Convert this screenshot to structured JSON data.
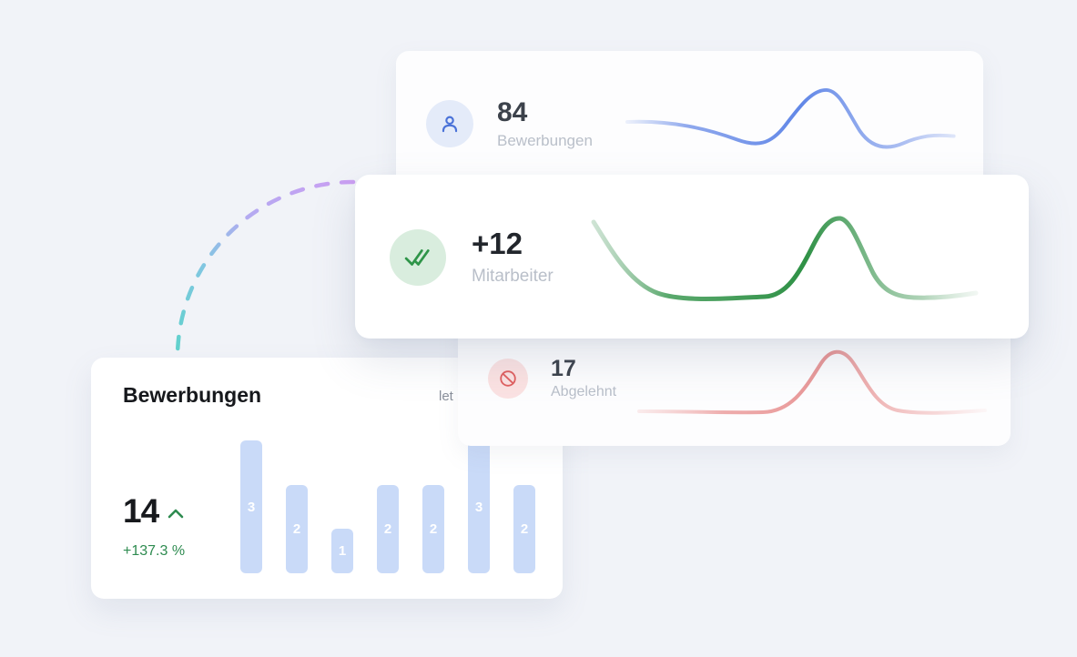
{
  "cards": {
    "applications": {
      "value": "84",
      "label": "Bewerbungen",
      "icon": "person-icon",
      "accent": "#4a72d8",
      "circle_bg": "#e4ebf9"
    },
    "employees": {
      "value": "+12",
      "label": "Mitarbeiter",
      "icon": "double-check-icon",
      "accent": "#2f9549",
      "circle_bg": "#d9edde"
    },
    "rejected": {
      "value": "17",
      "label": "Abgelehnt",
      "icon": "blocked-icon",
      "accent": "#e05f5f",
      "circle_bg": "#fbe2e2"
    }
  },
  "chart_card": {
    "title": "Bewerbungen",
    "period_label": "let",
    "metric_value": "14",
    "metric_trend_icon": "chevron-up-icon",
    "metric_change": "+137.3 %"
  },
  "chart_data": {
    "type": "bar",
    "categories": [
      "",
      "",
      "",
      "",
      "",
      "",
      ""
    ],
    "values": [
      3,
      2,
      1,
      2,
      2,
      3,
      2
    ],
    "title": "Bewerbungen",
    "xlabel": "",
    "ylabel": "",
    "ylim": [
      0,
      3
    ],
    "bar_color": "#c9daf8",
    "value_labels_shown": true,
    "grid": false,
    "legend": false
  },
  "sparklines": [
    {
      "card": "applications",
      "type": "line",
      "color": "#6187e7",
      "shape": "flat, small dip, single peak, dip, flat; fades at both ends"
    },
    {
      "card": "employees",
      "type": "line",
      "color": "#2f9146",
      "shape": "high start, drop to baseline, flat, single large peak, flat; fades at ends"
    },
    {
      "card": "rejected",
      "type": "line",
      "color": "#e89595",
      "shape": "flat baseline, single peak, flat; fades at ends"
    }
  ],
  "decor": {
    "connector_arc": {
      "style": "dashed quarter-circle",
      "color_start": "#cb9ff2",
      "color_end": "#5ed2cb"
    }
  },
  "colors": {
    "background": "#f1f3f8",
    "card_bg": "#ffffff",
    "value_text": "#3c424b",
    "label_text": "#b9bfc9",
    "positive_green": "#2e8b50"
  }
}
